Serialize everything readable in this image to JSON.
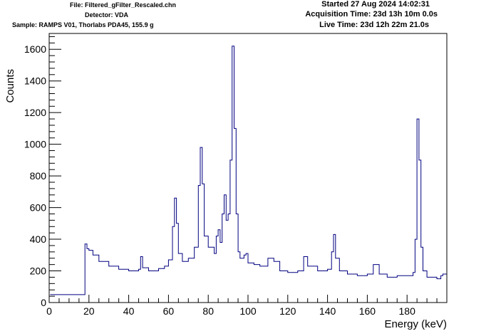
{
  "header": {
    "file": "File: Filtered_gFilter_Rescaled.chn",
    "detector": "Detector: VDA",
    "sample": "Sample: RAMPS V01, Thorlabs PDA45, 155.9 g",
    "started": "Started 27 Aug 2024 14:02:31",
    "acquisition": "Acquisition Time: 23d 13h 10m 0.0s",
    "live": "Live Time: 23d 12h 22m 21.0s"
  },
  "colors": {
    "line": "#000080",
    "axis": "#000000",
    "background": "#ffffff"
  },
  "chart_data": {
    "type": "line",
    "title": "",
    "xlabel": "Energy (keV)",
    "ylabel": "Counts",
    "xlim": [
      0,
      200
    ],
    "ylim": [
      0,
      1700
    ],
    "xticks": [
      0,
      20,
      40,
      60,
      80,
      100,
      120,
      140,
      160,
      180
    ],
    "yticks": [
      0,
      200,
      400,
      600,
      800,
      1000,
      1200,
      1400,
      1600
    ],
    "grid": false,
    "legend": "none",
    "series": [
      {
        "x": [
          0.5,
          17.5,
          18,
          19,
          20,
          22,
          25,
          30,
          35,
          40,
          45,
          46,
          47,
          50,
          55,
          58,
          60,
          62,
          63,
          64,
          65,
          67,
          70,
          73,
          75,
          76,
          77,
          78,
          80,
          83,
          84,
          85,
          86,
          87,
          88,
          89,
          90,
          91,
          92,
          93,
          94,
          95,
          96,
          98,
          99,
          100,
          103,
          106,
          110,
          113,
          116,
          120,
          125,
          128,
          130,
          135,
          140,
          142,
          143,
          144,
          146,
          150,
          155,
          160,
          163,
          166,
          170,
          175,
          180,
          183,
          184,
          185,
          186,
          187,
          188,
          190,
          195,
          197,
          198,
          200
        ],
        "y": [
          50,
          50,
          370,
          340,
          330,
          300,
          260,
          230,
          210,
          200,
          210,
          290,
          220,
          200,
          215,
          230,
          270,
          480,
          660,
          500,
          310,
          260,
          280,
          350,
          740,
          980,
          750,
          420,
          350,
          310,
          420,
          460,
          380,
          560,
          680,
          520,
          560,
          900,
          1620,
          1100,
          560,
          320,
          280,
          300,
          310,
          250,
          240,
          230,
          280,
          260,
          200,
          190,
          200,
          290,
          230,
          200,
          210,
          320,
          430,
          280,
          200,
          180,
          170,
          180,
          240,
          180,
          160,
          170,
          170,
          190,
          400,
          1160,
          900,
          350,
          200,
          160,
          150,
          170,
          180,
          140
        ]
      }
    ]
  }
}
